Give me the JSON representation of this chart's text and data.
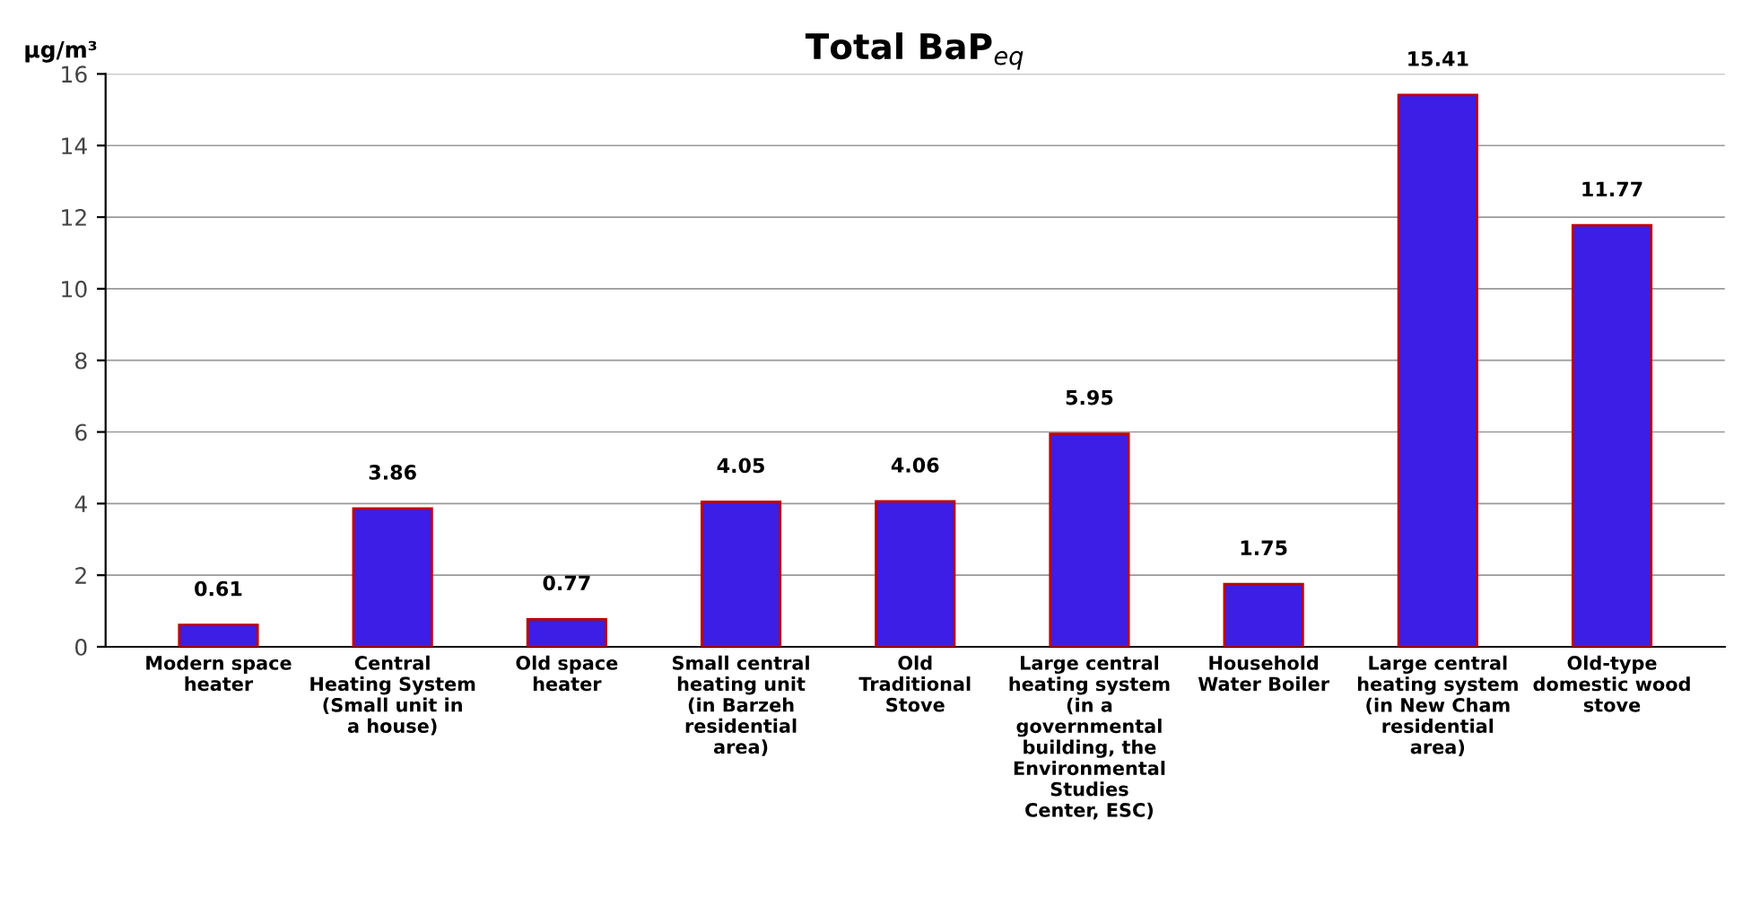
{
  "chart_data": {
    "type": "bar",
    "title": "Total BaP$_{eq}$",
    "ylabel": "µg/m³",
    "categories": [
      "Modern space heater",
      "Central Heating System (Small unit in a house)",
      "Old space heater",
      "Small central heating unit (in Barzeh residential area)",
      "Old Traditional Stove",
      "Large central heating system (in a governmental building, the Environmental Studies Center, ESC)",
      "Household Water Boiler",
      "Large central heating system (in New Cham residential area)",
      "Old-type domestic wood stove"
    ],
    "values": [
      0.61,
      3.86,
      0.77,
      4.05,
      4.06,
      5.95,
      1.75,
      15.41,
      11.77
    ],
    "color": "#3c1ee6",
    "ylim": [
      0,
      16
    ],
    "yticks": [
      0,
      2,
      4,
      6,
      8,
      10,
      12,
      14,
      16
    ],
    "grid": "y",
    "data_labels": true
  }
}
